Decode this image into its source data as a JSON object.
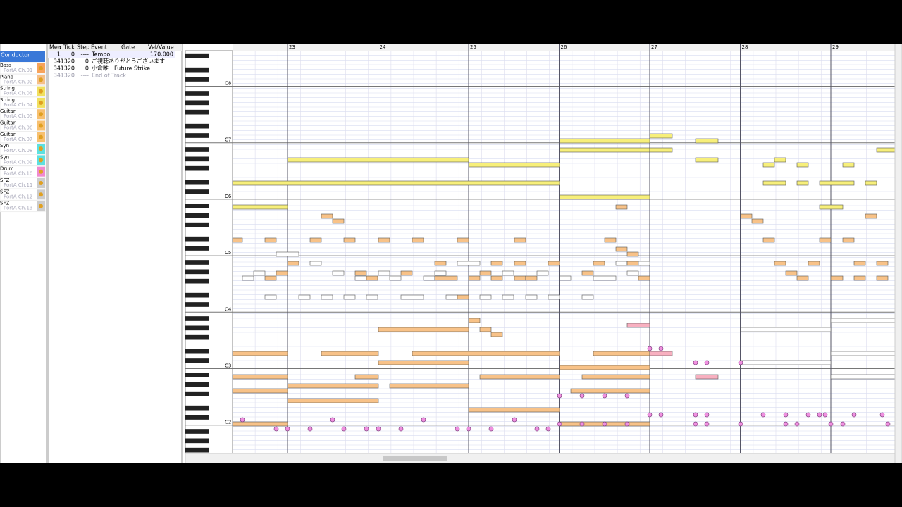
{
  "track_list": {
    "header": "Conductor",
    "tracks": [
      {
        "name": "Bass",
        "port": "PortA Ch.01"
      },
      {
        "name": "Piano",
        "port": "PortA Ch.02"
      },
      {
        "name": "String",
        "port": "PortA Ch.03"
      },
      {
        "name": "String",
        "port": "PortA Ch.04"
      },
      {
        "name": "Guitar",
        "port": "PortA Ch.05"
      },
      {
        "name": "Guitar",
        "port": "PortA Ch.06"
      },
      {
        "name": "Guitar",
        "port": "PortA Ch.07"
      },
      {
        "name": "Syn",
        "port": "PortA Ch.08"
      },
      {
        "name": "Syn",
        "port": "PortA Ch.09"
      },
      {
        "name": "Drum",
        "port": "PortA Ch.10"
      },
      {
        "name": "SFZ",
        "port": "PortA Ch.11"
      },
      {
        "name": "SFZ",
        "port": "PortA Ch.12"
      },
      {
        "name": "SFZ",
        "port": "PortA Ch.13"
      }
    ]
  },
  "event_list": {
    "columns": [
      "Mea",
      "Tick",
      "Step",
      "Event",
      "Gate",
      "Vel/Value"
    ],
    "rows": [
      {
        "mea": "1",
        "tick": "0",
        "step": "----",
        "event": "Tempo",
        "value": "170.000"
      },
      {
        "mea": "34",
        "tick": "1320",
        "step": "0",
        "event": "ご視聴ありがとうございます"
      },
      {
        "mea": "34",
        "tick": "1320",
        "step": "0",
        "event": "小倉唯　Future Strike"
      },
      {
        "mea": "34",
        "tick": "1320",
        "step": "----",
        "event": "End of Track"
      }
    ]
  },
  "piano_roll": {
    "measures": [
      "23",
      "24",
      "25",
      "26",
      "27",
      "28",
      "29"
    ],
    "octaves": [
      "C8",
      "C7",
      "C6",
      "C5",
      "C4",
      "C3",
      "C2"
    ]
  }
}
